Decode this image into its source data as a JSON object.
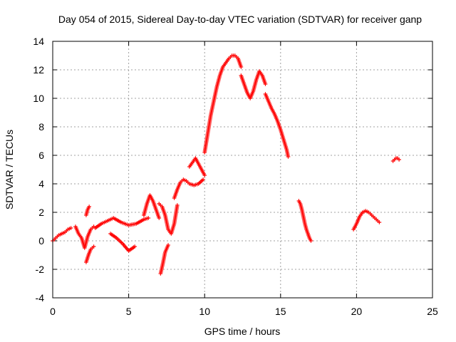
{
  "chart_data": {
    "type": "scatter",
    "title": "Day 054 of 2015, Sidereal Day-to-day VTEC variation (SDTVAR) for receiver ganp",
    "xlabel": "GPS time / hours",
    "ylabel": "SDTVAR / TECUs",
    "xlim": [
      0,
      25
    ],
    "ylim": [
      -4,
      14
    ],
    "x_ticks": [
      "0",
      "5",
      "10",
      "15",
      "20",
      "25"
    ],
    "y_ticks": [
      "-4",
      "-2",
      "0",
      "2",
      "4",
      "6",
      "8",
      "10",
      "12",
      "14"
    ],
    "grid": true,
    "marker": "plus",
    "color": "#ff0000",
    "segments": [
      {
        "x": [
          0.0,
          0.2,
          0.4,
          0.6,
          0.8,
          1.0,
          1.2
        ],
        "y": [
          0.0,
          0.2,
          0.4,
          0.5,
          0.6,
          0.8,
          0.9
        ]
      },
      {
        "x": [
          1.5,
          1.7,
          1.9,
          2.1,
          2.3,
          2.5,
          2.7
        ],
        "y": [
          1.0,
          0.5,
          0.2,
          -0.5,
          0.3,
          0.8,
          1.0
        ]
      },
      {
        "x": [
          2.2,
          2.3,
          2.4
        ],
        "y": [
          1.8,
          2.2,
          2.4
        ]
      },
      {
        "x": [
          2.2,
          2.35,
          2.5,
          2.7
        ],
        "y": [
          -1.5,
          -1.0,
          -0.6,
          -0.4
        ]
      },
      {
        "x": [
          2.8,
          3.2,
          3.6,
          4.0,
          4.5,
          5.0,
          5.5,
          6.0,
          6.3
        ],
        "y": [
          0.9,
          1.2,
          1.4,
          1.6,
          1.3,
          1.1,
          1.2,
          1.5,
          1.6
        ]
      },
      {
        "x": [
          3.8,
          4.2,
          4.6,
          5.0,
          5.4
        ],
        "y": [
          0.5,
          0.2,
          -0.2,
          -0.7,
          -0.4
        ]
      },
      {
        "x": [
          6.0,
          6.2,
          6.4,
          6.6,
          6.8,
          7.0
        ],
        "y": [
          1.8,
          2.6,
          3.2,
          2.8,
          2.2,
          1.6
        ]
      },
      {
        "x": [
          7.0,
          7.2,
          7.4,
          7.6,
          7.8,
          8.0,
          8.2
        ],
        "y": [
          2.6,
          2.4,
          1.8,
          0.8,
          0.5,
          1.2,
          2.5
        ]
      },
      {
        "x": [
          7.1,
          7.25,
          7.4,
          7.6
        ],
        "y": [
          -2.3,
          -1.6,
          -0.8,
          -0.3
        ]
      },
      {
        "x": [
          8.0,
          8.2,
          8.4,
          8.6,
          8.8,
          9.0,
          9.3,
          9.6,
          9.9
        ],
        "y": [
          3.0,
          3.6,
          4.1,
          4.3,
          4.2,
          4.0,
          3.9,
          4.0,
          4.3
        ]
      },
      {
        "x": [
          9.0,
          9.2,
          9.4,
          9.6,
          9.8,
          10.0
        ],
        "y": [
          5.2,
          5.5,
          5.8,
          5.4,
          5.0,
          4.6
        ]
      },
      {
        "x": [
          10.0,
          10.2,
          10.4,
          10.6,
          10.8,
          11.0,
          11.2,
          11.4,
          11.6,
          11.8,
          12.0,
          12.2,
          12.4
        ],
        "y": [
          6.2,
          7.5,
          8.8,
          9.8,
          10.8,
          11.6,
          12.2,
          12.5,
          12.8,
          13.0,
          13.0,
          12.8,
          12.2
        ]
      },
      {
        "x": [
          12.4,
          12.6,
          12.8,
          13.0,
          13.2,
          13.4,
          13.6,
          13.8,
          14.0
        ],
        "y": [
          11.6,
          11.0,
          10.4,
          10.0,
          10.5,
          11.3,
          11.9,
          11.6,
          11.0
        ]
      },
      {
        "x": [
          14.0,
          14.2,
          14.4,
          14.6,
          14.8,
          15.0,
          15.2,
          15.4,
          15.5
        ],
        "y": [
          10.3,
          9.8,
          9.3,
          8.9,
          8.4,
          7.8,
          7.1,
          6.4,
          5.9
        ]
      },
      {
        "x": [
          16.2,
          16.3,
          16.4,
          16.5,
          16.6,
          16.7,
          16.8,
          16.9,
          17.0
        ],
        "y": [
          2.8,
          2.6,
          2.2,
          1.7,
          1.2,
          0.8,
          0.5,
          0.2,
          0.0
        ]
      },
      {
        "x": [
          19.8,
          20.0,
          20.2,
          20.4,
          20.6,
          20.8,
          21.0,
          21.2,
          21.4,
          21.5
        ],
        "y": [
          0.8,
          1.2,
          1.7,
          2.0,
          2.1,
          2.0,
          1.8,
          1.6,
          1.4,
          1.3
        ]
      },
      {
        "x": [
          22.4,
          22.5,
          22.6,
          22.7,
          22.8
        ],
        "y": [
          5.6,
          5.7,
          5.8,
          5.8,
          5.7
        ]
      }
    ]
  }
}
